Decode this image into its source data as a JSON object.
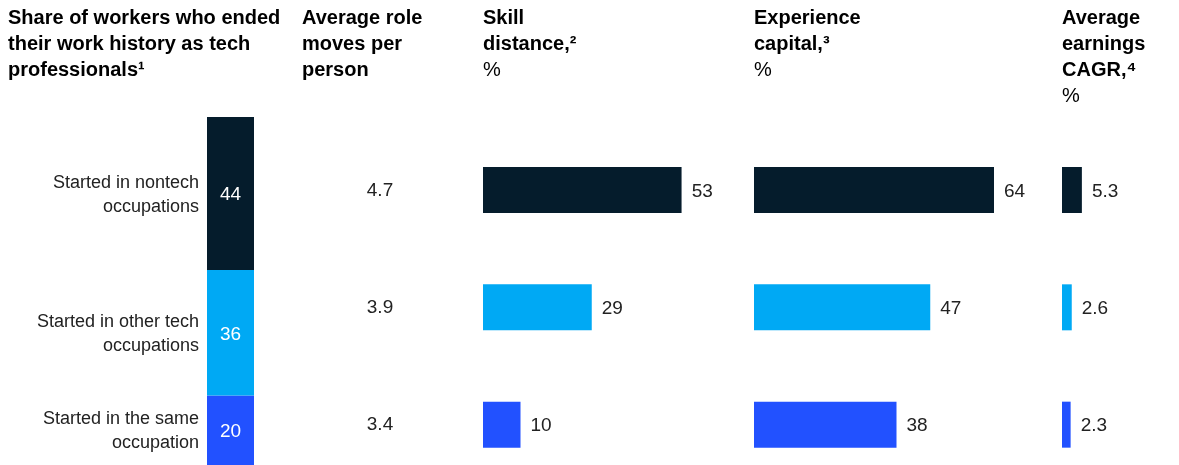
{
  "chart_data": [
    {
      "type": "bar",
      "stacked": true,
      "title": "Share of workers who ended their work history as tech professionals¹",
      "categories": [
        null
      ],
      "data_labels": true,
      "series": [
        {
          "name": "Started in the same occupation",
          "color": "#2251ff",
          "values": [
            20
          ]
        },
        {
          "name": "Started in other tech occupations",
          "color": "#00a9f4",
          "values": [
            36
          ]
        },
        {
          "name": "Started in nontech occupations",
          "color": "#051c2c",
          "values": [
            44
          ]
        }
      ]
    },
    {
      "type": "other",
      "title": "Average role moves per person",
      "categories": [
        null,
        null,
        null
      ],
      "values": [
        4.7,
        3.9,
        3.4
      ],
      "data_labels": true
    },
    {
      "type": "bar",
      "orientation": "horizontal",
      "title": "Skill distance,²",
      "subtitle": "%",
      "categories": [
        null,
        null,
        null
      ],
      "values": [
        53,
        29,
        10
      ],
      "colors": [
        "#051c2c",
        "#00a9f4",
        "#2251ff"
      ],
      "data_labels": true
    },
    {
      "type": "bar",
      "orientation": "horizontal",
      "title": "Experience capital,³",
      "subtitle": "%",
      "categories": [
        null,
        null,
        null
      ],
      "values": [
        64,
        47,
        38
      ],
      "colors": [
        "#051c2c",
        "#00a9f4",
        "#2251ff"
      ],
      "data_labels": true
    },
    {
      "type": "bar",
      "orientation": "horizontal",
      "title": "Average earnings CAGR,⁴",
      "subtitle": "%",
      "categories": [
        null,
        null,
        null
      ],
      "values": [
        5.3,
        2.6,
        2.3
      ],
      "colors": [
        "#051c2c",
        "#00a9f4",
        "#2251ff"
      ],
      "data_labels": true
    }
  ]
}
